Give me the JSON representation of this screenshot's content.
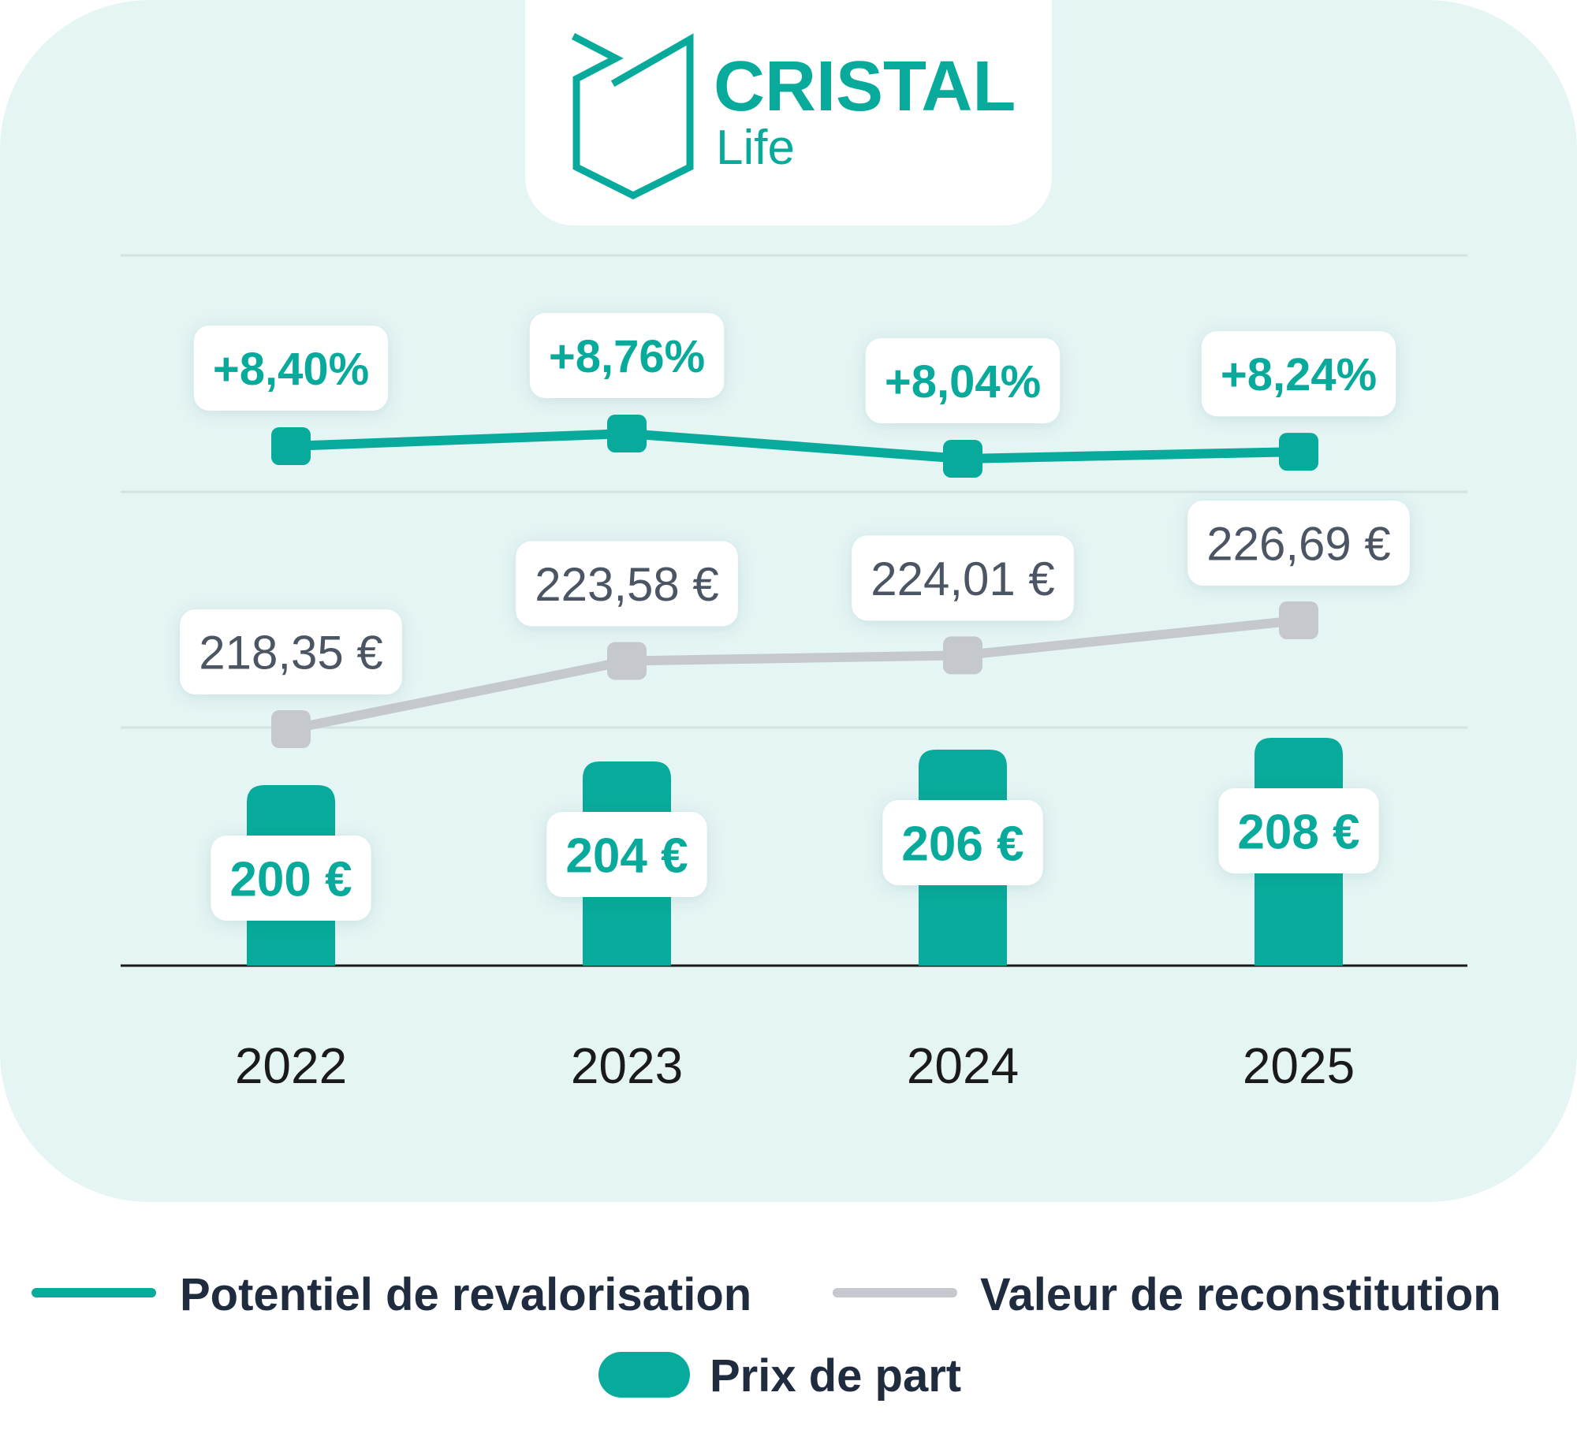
{
  "brand": {
    "name": "CRISTAL",
    "sub": "Life",
    "color": "#08ab9b"
  },
  "colors": {
    "panel": "#e5f5f4",
    "teal": "#08ab9b",
    "grey_line": "#c5c9cd",
    "grey_text": "#4b5563",
    "axis_text": "#1a1a1a",
    "legend_text": "#1f2b3e"
  },
  "chart_data": {
    "type": "bar",
    "categories": [
      "2022",
      "2023",
      "2024",
      "2025"
    ],
    "series": [
      {
        "name": "Prix de part",
        "kind": "bar",
        "values": [
          200,
          204,
          206,
          208
        ],
        "labels": [
          "200 €",
          "204 €",
          "206 €",
          "208 €"
        ]
      },
      {
        "name": "Valeur de reconstitution",
        "kind": "line",
        "values": [
          218.35,
          223.58,
          224.01,
          226.69
        ],
        "labels": [
          "218,35 €",
          "223,58 €",
          "224,01 €",
          "226,69 €"
        ]
      },
      {
        "name": "Potentiel de revalorisation",
        "kind": "line",
        "values": [
          8.4,
          8.76,
          8.04,
          8.24
        ],
        "labels": [
          "+8,40%",
          "+8,76%",
          "+8,04%",
          "+8,24%"
        ]
      }
    ],
    "gridlines": true,
    "legend_position": "bottom"
  },
  "legend": [
    {
      "label": "Potentiel de revalorisation",
      "kind": "line",
      "color": "#08ab9b"
    },
    {
      "label": "Valeur de reconstitution",
      "kind": "line",
      "color": "#c5c9cd"
    },
    {
      "label": "Prix de part",
      "kind": "bar",
      "color": "#08ab9b"
    }
  ]
}
